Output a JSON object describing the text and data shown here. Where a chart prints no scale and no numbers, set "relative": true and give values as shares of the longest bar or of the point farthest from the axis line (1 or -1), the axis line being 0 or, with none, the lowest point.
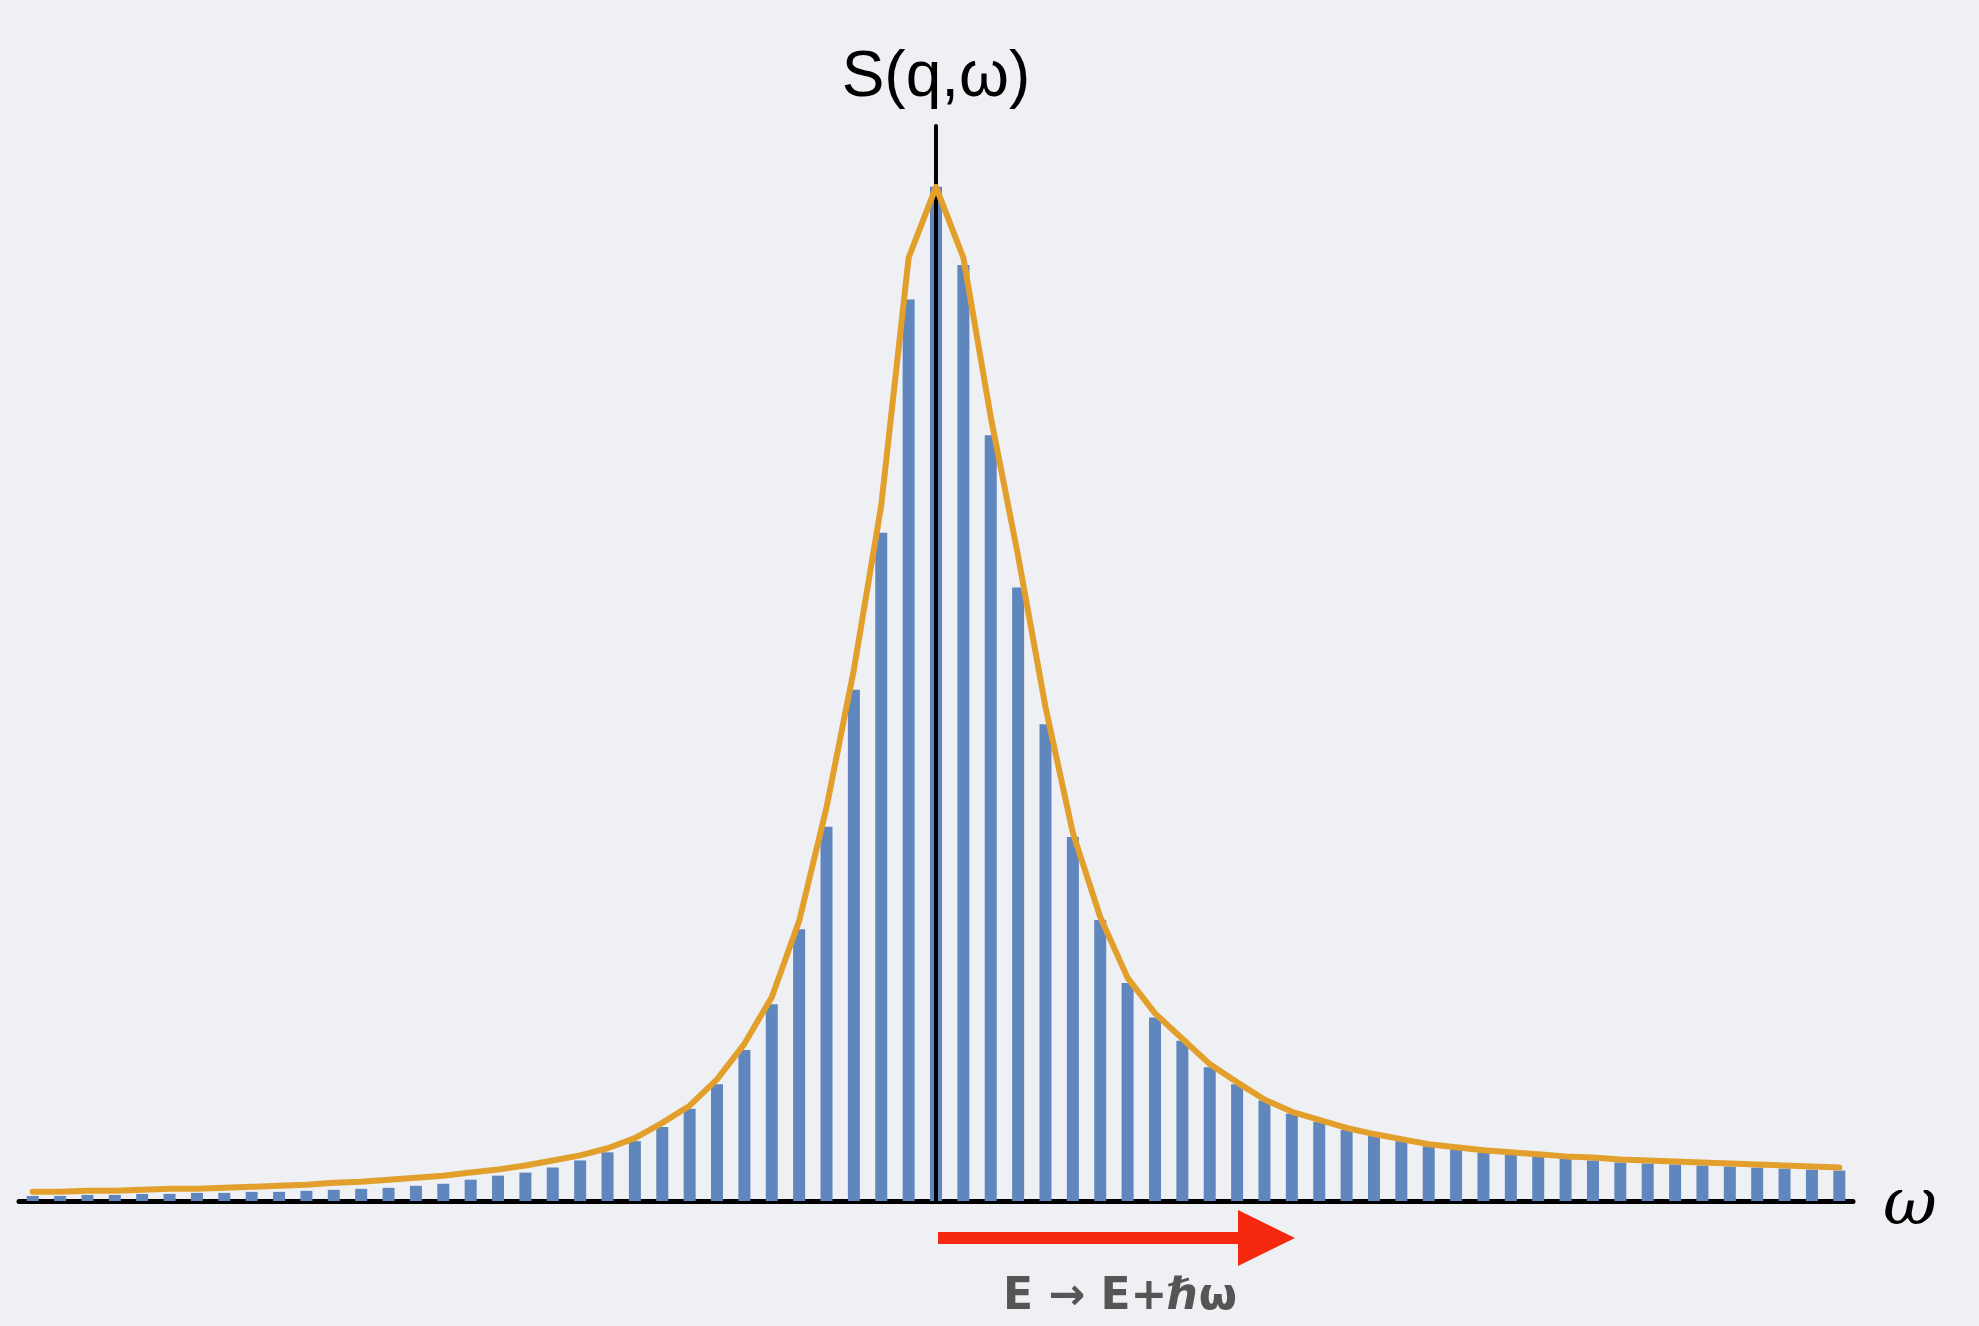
{
  "chart_data": [
    {
      "type": "bar",
      "relative": true,
      "xlabel": "ω",
      "annotations": [
        "E → E+ℏω"
      ],
      "categories": [
        null,
        null,
        null,
        null,
        null,
        null,
        null,
        null,
        null,
        null,
        null,
        null,
        null,
        null,
        null,
        null,
        null,
        null,
        null,
        null,
        null,
        null,
        null,
        null,
        null,
        null,
        null,
        null,
        null,
        null,
        null,
        null,
        null,
        null,
        null,
        null,
        null,
        null,
        null,
        null,
        null,
        null,
        null,
        null,
        null,
        null,
        null,
        null,
        null,
        null,
        null,
        null,
        null,
        null,
        null,
        null,
        null,
        null,
        null,
        null,
        null,
        null,
        null,
        null,
        null,
        null,
        null
      ],
      "series": [
        {
          "color": "#6087bd",
          "values": [
            0.005,
            0.005,
            0.006,
            0.006,
            0.007,
            0.007,
            0.008,
            0.008,
            0.009,
            0.009,
            0.01,
            0.011,
            0.012,
            0.013,
            0.015,
            0.017,
            0.021,
            0.025,
            0.028,
            0.033,
            0.04,
            0.048,
            0.059,
            0.073,
            0.091,
            0.115,
            0.149,
            0.194,
            0.268,
            0.369,
            0.504,
            0.659,
            0.889,
            1,
            0.923,
            0.755,
            0.605,
            0.47,
            0.359,
            0.277,
            0.215,
            0.181,
            0.158,
            0.132,
            0.115,
            0.099,
            0.086,
            0.078,
            0.07,
            0.064,
            0.059,
            0.054,
            0.051,
            0.048,
            0.046,
            0.044,
            0.042,
            0.04,
            0.038,
            0.037,
            0.036,
            0.035,
            0.034,
            0.033,
            0.032,
            0.031,
            0.03
          ]
        }
      ]
    },
    {
      "type": "line",
      "relative": true,
      "ylabel": "S(q,ω)",
      "categories": [
        null,
        null,
        null,
        null,
        null,
        null,
        null,
        null,
        null,
        null,
        null,
        null,
        null,
        null,
        null,
        null,
        null,
        null,
        null,
        null,
        null,
        null,
        null,
        null,
        null,
        null,
        null,
        null,
        null,
        null,
        null,
        null,
        null,
        null,
        null,
        null,
        null,
        null,
        null,
        null,
        null,
        null,
        null,
        null,
        null,
        null,
        null,
        null,
        null,
        null,
        null,
        null,
        null,
        null,
        null,
        null,
        null,
        null,
        null,
        null,
        null,
        null,
        null,
        null,
        null,
        null,
        null
      ],
      "series": [
        {
          "color": "#e39f2c",
          "values": [
            0.009,
            0.009,
            0.01,
            0.01,
            0.011,
            0.012,
            0.012,
            0.013,
            0.014,
            0.015,
            0.016,
            0.018,
            0.019,
            0.021,
            0.023,
            0.025,
            0.028,
            0.031,
            0.035,
            0.04,
            0.045,
            0.052,
            0.062,
            0.077,
            0.094,
            0.12,
            0.155,
            0.201,
            0.276,
            0.388,
            0.524,
            0.686,
            0.93,
            1,
            0.93,
            0.773,
            0.636,
            0.487,
            0.363,
            0.28,
            0.22,
            0.185,
            0.16,
            0.135,
            0.117,
            0.1,
            0.088,
            0.08,
            0.072,
            0.066,
            0.061,
            0.056,
            0.053,
            0.05,
            0.048,
            0.046,
            0.044,
            0.043,
            0.041,
            0.04,
            0.039,
            0.038,
            0.037,
            0.036,
            0.035,
            0.034,
            0.033
          ]
        }
      ]
    }
  ]
}
